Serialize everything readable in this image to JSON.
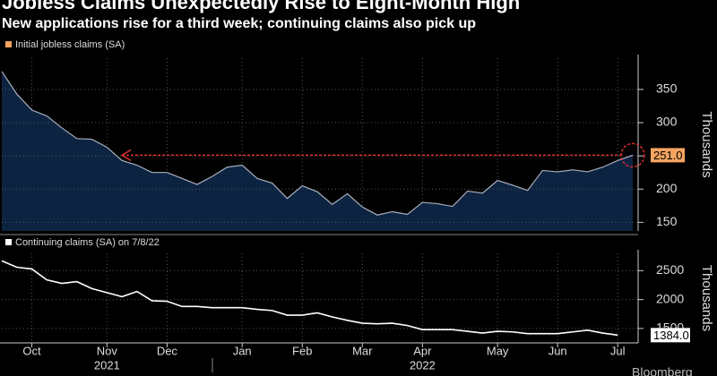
{
  "chart_data": {
    "type": "line",
    "title": "Jobless Claims Unexpectedly Rise to Eight-Month High",
    "subtitle": "New applications rise for a third week; continuing claims also pick up",
    "source": "Bloomberg",
    "categories": [
      null,
      null,
      "Oct",
      null,
      null,
      null,
      null,
      "Nov",
      null,
      null,
      null,
      "Dec",
      null,
      null,
      null,
      null,
      "Jan",
      null,
      null,
      null,
      "Feb",
      null,
      null,
      null,
      "Mar",
      null,
      null,
      null,
      "Apr",
      null,
      null,
      null,
      null,
      "May",
      null,
      null,
      null,
      "Jun",
      null,
      null,
      null,
      "Jul",
      null
    ],
    "years": [
      "2021",
      "2022"
    ],
    "panels": [
      {
        "type": "area",
        "y_label": "Thousands",
        "series": [
          {
            "name": "Initial jobless claims (SA)",
            "color": "#f4a460",
            "line_color": "#a9b0bd",
            "fill": "#0d2342",
            "values": [
              377,
              343,
              319,
              310,
              292,
              276,
              275,
              263,
              243,
              236,
              225,
              225,
              216,
              207,
              219,
              233,
              236,
              216,
              209,
              186,
              205,
              196,
              177,
              193,
              173,
              161,
              166,
              162,
              180,
              178,
              174,
              197,
              194,
              213,
              206,
              198,
              228,
              226,
              229,
              226,
              233,
              243,
              251
            ],
            "last_label": "251.0"
          }
        ],
        "ylim": [
          137,
          397
        ],
        "yticks": [
          150,
          200,
          250,
          300,
          350
        ]
      },
      {
        "type": "line",
        "y_label": "Thousands",
        "series": [
          {
            "name": "Continuing claims (SA) on 7/8/22",
            "color": "#ffffff",
            "line_color": "#ffffff",
            "values": [
              2670,
              2560,
              2530,
              2340,
              2280,
              2310,
              2190,
              2120,
              2050,
              2140,
              1980,
              1970,
              1880,
              1880,
              1860,
              1860,
              1860,
              1830,
              1810,
              1730,
              1730,
              1770,
              1700,
              1640,
              1590,
              1580,
              1590,
              1550,
              1480,
              1480,
              1480,
              1450,
              1420,
              1450,
              1440,
              1410,
              1410,
              1410,
              1440,
              1470,
              1420,
              1384,
              null
            ],
            "last_label": "1384.0"
          }
        ],
        "ylim": [
          1250,
          2800
        ],
        "yticks": [
          1500,
          2000,
          2500
        ]
      }
    ]
  }
}
